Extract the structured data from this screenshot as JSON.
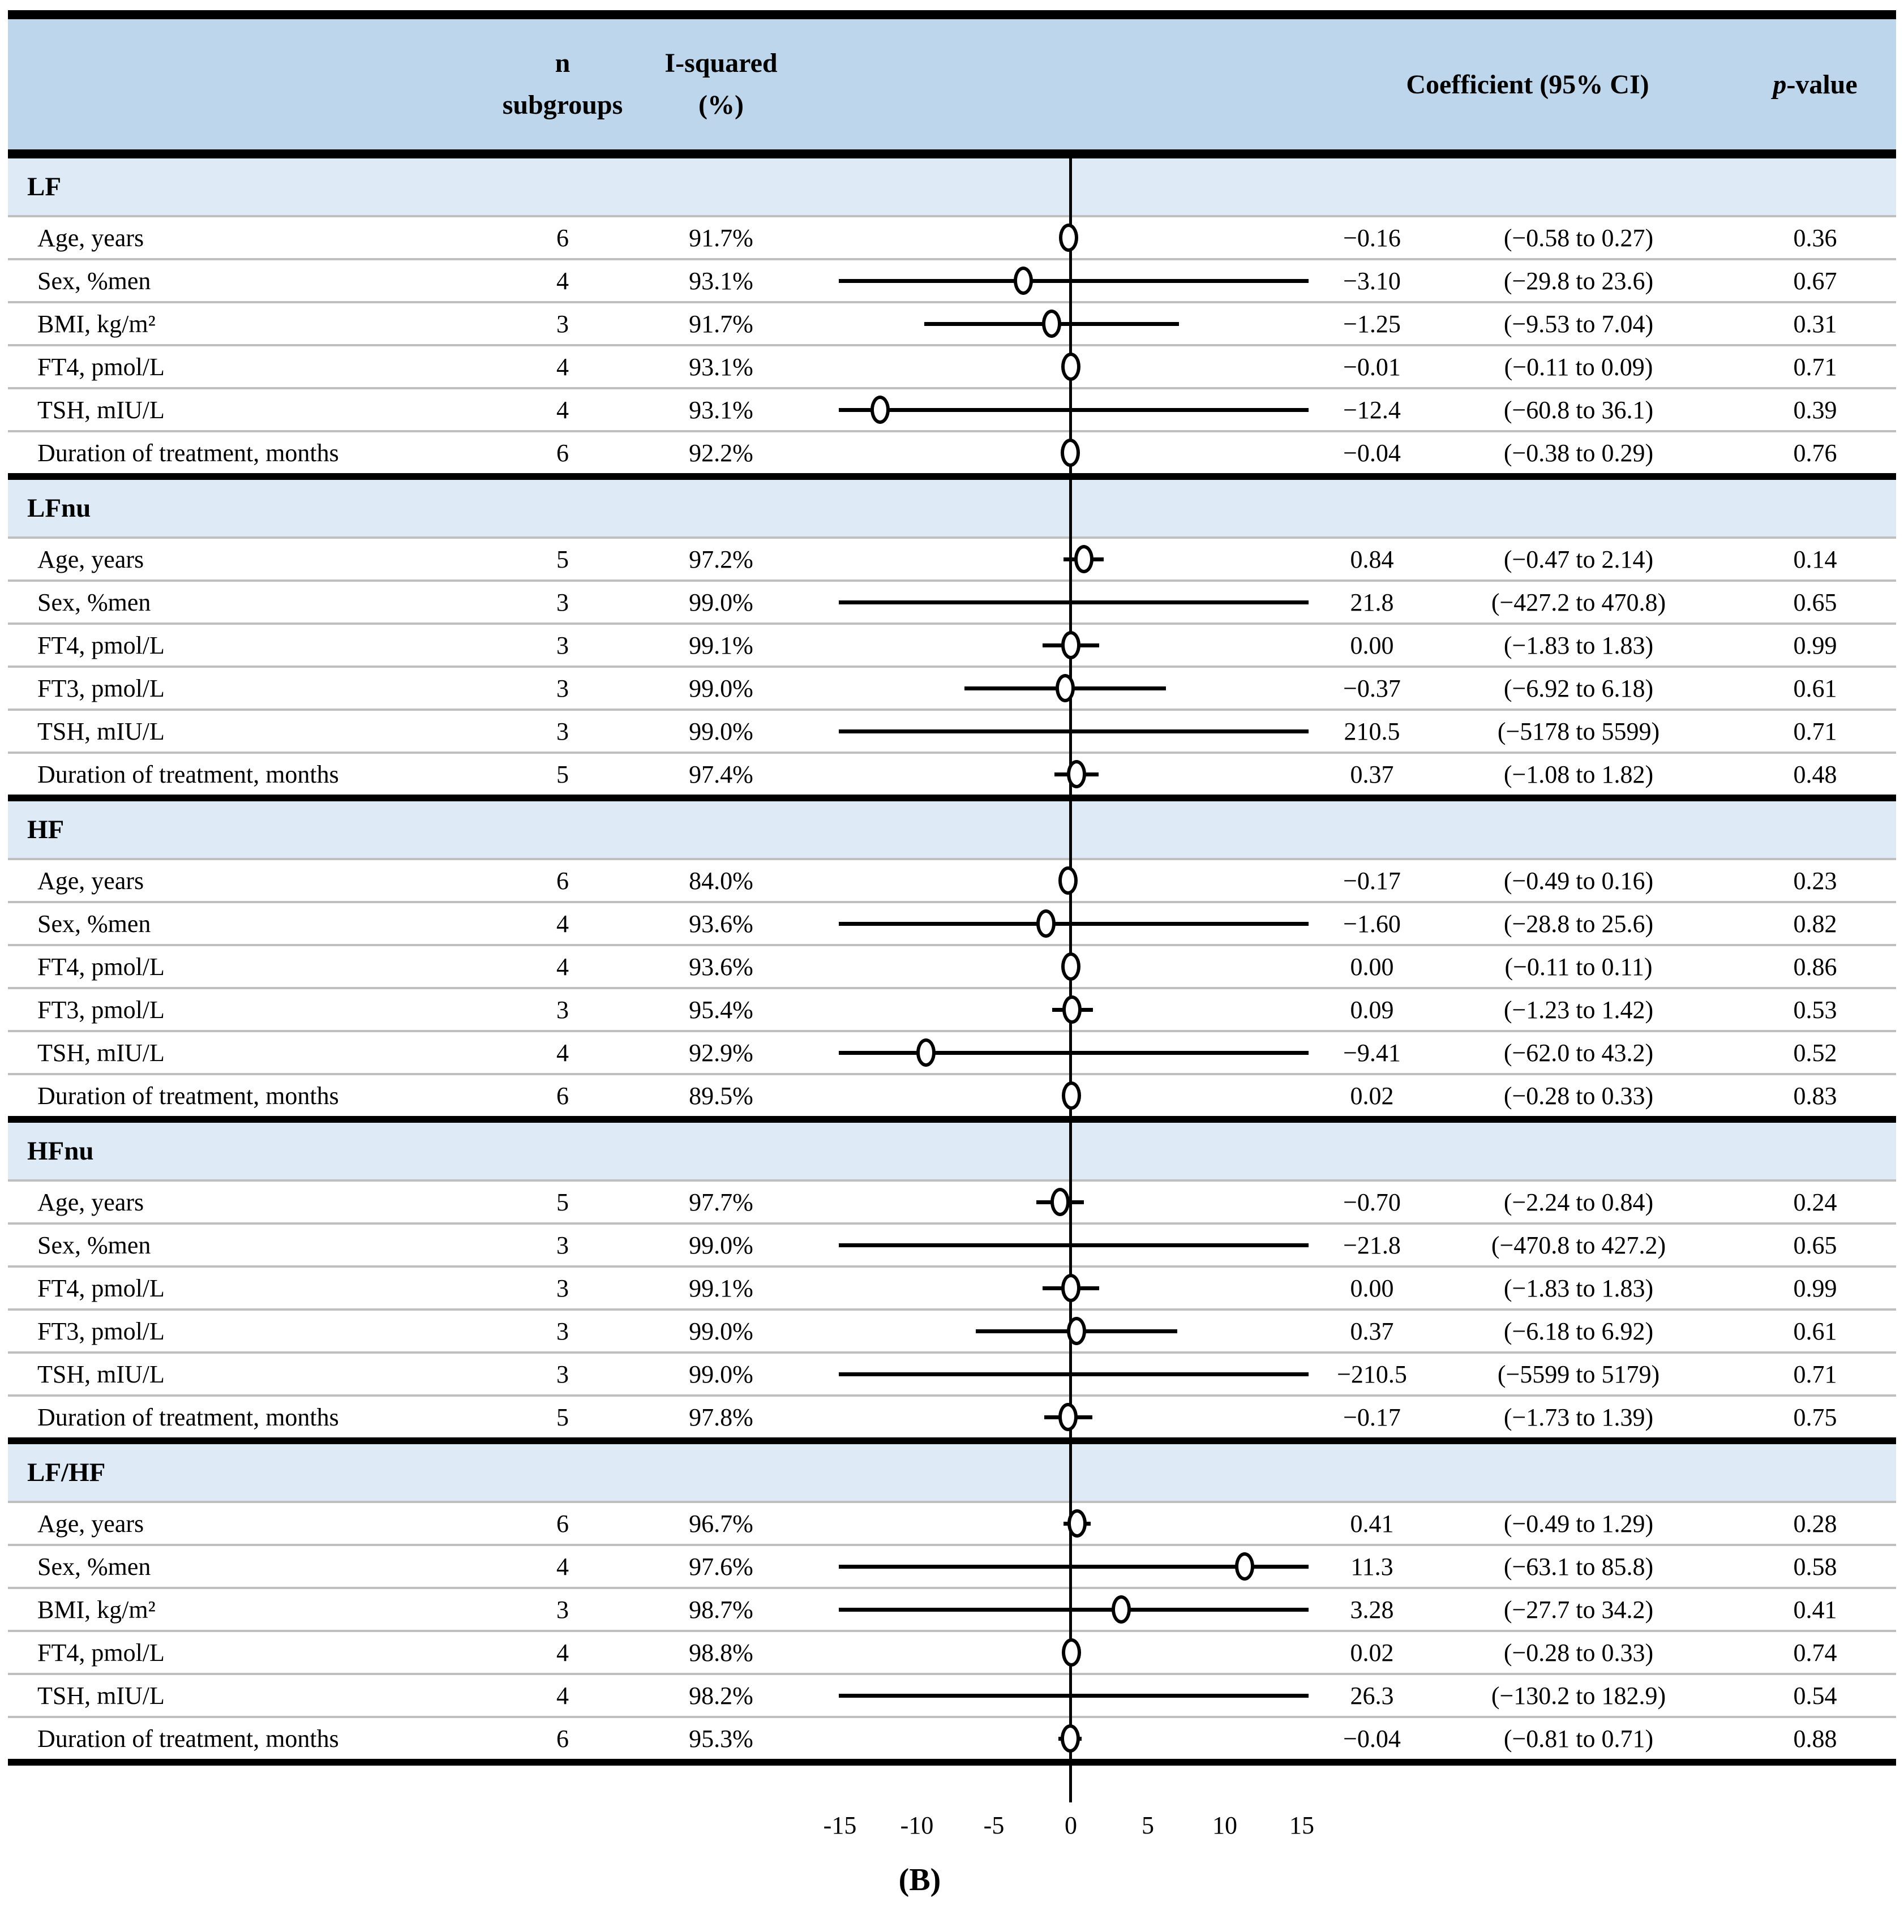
{
  "header": {
    "n_line1": "n",
    "n_line2": "subgroups",
    "isq_line1": "I-squared",
    "isq_line2": "(%)",
    "coef": "Coefficient (95% CI)",
    "p_italic": "p",
    "p_suffix": "-value"
  },
  "axis": {
    "tick_labels": [
      "-15",
      "-10",
      "-5",
      "0",
      "5",
      "10",
      "15"
    ],
    "tick_values": [
      -15,
      -10,
      -5,
      0,
      5,
      10,
      15
    ]
  },
  "caption": "(B)",
  "colors": {
    "header_band": "#bdd6ec",
    "group_band": "#deeaf6",
    "row_separator": "#bfbfbf",
    "rule": "#000000",
    "marker_fill": "#ffffff",
    "marker_stroke": "#000000"
  },
  "chart_data": {
    "type": "scatter",
    "subtype": "forest-plot",
    "title": "(B)",
    "xlabel": "",
    "xlim": [
      -15,
      15
    ],
    "x_ticks": [
      -15,
      -10,
      -5,
      0,
      5,
      10,
      15
    ],
    "zero_line": 0,
    "groups": [
      {
        "name": "LF",
        "rows": [
          {
            "label": "Age, years",
            "n": "6",
            "i2": "91.7%",
            "coef": "−0.16",
            "ci": "(−0.58 to 0.27)",
            "p": "0.36",
            "est": -0.16,
            "lo": -0.58,
            "hi": 0.27
          },
          {
            "label": "Sex, %men",
            "n": "4",
            "i2": "93.1%",
            "coef": "−3.10",
            "ci": "(−29.8 to 23.6)",
            "p": "0.67",
            "est": -3.1,
            "lo": -29.8,
            "hi": 23.6
          },
          {
            "label": "BMI, kg/m²",
            "n": "3",
            "i2": "91.7%",
            "coef": "−1.25",
            "ci": "(−9.53 to 7.04)",
            "p": "0.31",
            "est": -1.25,
            "lo": -9.53,
            "hi": 7.04
          },
          {
            "label": "FT4, pmol/L",
            "n": "4",
            "i2": "93.1%",
            "coef": "−0.01",
            "ci": "(−0.11 to 0.09)",
            "p": "0.71",
            "est": -0.01,
            "lo": -0.11,
            "hi": 0.09
          },
          {
            "label": "TSH, mIU/L",
            "n": "4",
            "i2": "93.1%",
            "coef": "−12.4",
            "ci": "(−60.8 to 36.1)",
            "p": "0.39",
            "est": -12.4,
            "lo": -60.8,
            "hi": 36.1
          },
          {
            "label": "Duration of treatment, months",
            "n": "6",
            "i2": "92.2%",
            "coef": "−0.04",
            "ci": "(−0.38 to 0.29)",
            "p": "0.76",
            "est": -0.04,
            "lo": -0.38,
            "hi": 0.29
          }
        ]
      },
      {
        "name": "LFnu",
        "rows": [
          {
            "label": "Age, years",
            "n": "5",
            "i2": "97.2%",
            "coef": "0.84",
            "ci": "(−0.47 to 2.14)",
            "p": "0.14",
            "est": 0.84,
            "lo": -0.47,
            "hi": 2.14
          },
          {
            "label": "Sex, %men",
            "n": "3",
            "i2": "99.0%",
            "coef": "21.8",
            "ci": "(−427.2 to 470.8)",
            "p": "0.65",
            "est": 21.8,
            "lo": -427.2,
            "hi": 470.8
          },
          {
            "label": "FT4, pmol/L",
            "n": "3",
            "i2": "99.1%",
            "coef": "0.00",
            "ci": "(−1.83 to 1.83)",
            "p": "0.99",
            "est": 0.0,
            "lo": -1.83,
            "hi": 1.83
          },
          {
            "label": "FT3, pmol/L",
            "n": "3",
            "i2": "99.0%",
            "coef": "−0.37",
            "ci": "(−6.92 to 6.18)",
            "p": "0.61",
            "est": -0.37,
            "lo": -6.92,
            "hi": 6.18
          },
          {
            "label": "TSH, mIU/L",
            "n": "3",
            "i2": "99.0%",
            "coef": "210.5",
            "ci": "(−5178 to 5599)",
            "p": "0.71",
            "est": 210.5,
            "lo": -5178,
            "hi": 5599
          },
          {
            "label": "Duration of treatment, months",
            "n": "5",
            "i2": "97.4%",
            "coef": "0.37",
            "ci": "(−1.08 to 1.82)",
            "p": "0.48",
            "est": 0.37,
            "lo": -1.08,
            "hi": 1.82
          }
        ]
      },
      {
        "name": "HF",
        "rows": [
          {
            "label": "Age, years",
            "n": "6",
            "i2": "84.0%",
            "coef": "−0.17",
            "ci": "(−0.49 to 0.16)",
            "p": "0.23",
            "est": -0.17,
            "lo": -0.49,
            "hi": 0.16
          },
          {
            "label": "Sex, %men",
            "n": "4",
            "i2": "93.6%",
            "coef": "−1.60",
            "ci": "(−28.8 to 25.6)",
            "p": "0.82",
            "est": -1.6,
            "lo": -28.8,
            "hi": 25.6
          },
          {
            "label": "FT4, pmol/L",
            "n": "4",
            "i2": "93.6%",
            "coef": "0.00",
            "ci": "(−0.11 to 0.11)",
            "p": "0.86",
            "est": 0.0,
            "lo": -0.11,
            "hi": 0.11
          },
          {
            "label": "FT3, pmol/L",
            "n": "3",
            "i2": "95.4%",
            "coef": "0.09",
            "ci": "(−1.23 to 1.42)",
            "p": "0.53",
            "est": 0.09,
            "lo": -1.23,
            "hi": 1.42
          },
          {
            "label": "TSH, mIU/L",
            "n": "4",
            "i2": "92.9%",
            "coef": "−9.41",
            "ci": "(−62.0 to 43.2)",
            "p": "0.52",
            "est": -9.41,
            "lo": -62.0,
            "hi": 43.2
          },
          {
            "label": "Duration of treatment, months",
            "n": "6",
            "i2": "89.5%",
            "coef": "0.02",
            "ci": "(−0.28 to 0.33)",
            "p": "0.83",
            "est": 0.02,
            "lo": -0.28,
            "hi": 0.33
          }
        ]
      },
      {
        "name": "HFnu",
        "rows": [
          {
            "label": "Age, years",
            "n": "5",
            "i2": "97.7%",
            "coef": "−0.70",
            "ci": "(−2.24 to 0.84)",
            "p": "0.24",
            "est": -0.7,
            "lo": -2.24,
            "hi": 0.84
          },
          {
            "label": "Sex, %men",
            "n": "3",
            "i2": "99.0%",
            "coef": "−21.8",
            "ci": "(−470.8 to 427.2)",
            "p": "0.65",
            "est": -21.8,
            "lo": -470.8,
            "hi": 427.2
          },
          {
            "label": "FT4, pmol/L",
            "n": "3",
            "i2": "99.1%",
            "coef": "0.00",
            "ci": "(−1.83 to 1.83)",
            "p": "0.99",
            "est": 0.0,
            "lo": -1.83,
            "hi": 1.83
          },
          {
            "label": "FT3, pmol/L",
            "n": "3",
            "i2": "99.0%",
            "coef": "0.37",
            "ci": "(−6.18 to 6.92)",
            "p": "0.61",
            "est": 0.37,
            "lo": -6.18,
            "hi": 6.92
          },
          {
            "label": "TSH, mIU/L",
            "n": "3",
            "i2": "99.0%",
            "coef": "−210.5",
            "ci": "(−5599 to 5179)",
            "p": "0.71",
            "est": -210.5,
            "lo": -5599,
            "hi": 5179
          },
          {
            "label": "Duration of treatment, months",
            "n": "5",
            "i2": "97.8%",
            "coef": "−0.17",
            "ci": "(−1.73 to 1.39)",
            "p": "0.75",
            "est": -0.17,
            "lo": -1.73,
            "hi": 1.39
          }
        ]
      },
      {
        "name": "LF/HF",
        "rows": [
          {
            "label": "Age, years",
            "n": "6",
            "i2": "96.7%",
            "coef": "0.41",
            "ci": "(−0.49 to 1.29)",
            "p": "0.28",
            "est": 0.41,
            "lo": -0.49,
            "hi": 1.29
          },
          {
            "label": "Sex, %men",
            "n": "4",
            "i2": "97.6%",
            "coef": "11.3",
            "ci": "(−63.1 to 85.8)",
            "p": "0.58",
            "est": 11.3,
            "lo": -63.1,
            "hi": 85.8
          },
          {
            "label": "BMI, kg/m²",
            "n": "3",
            "i2": "98.7%",
            "coef": "3.28",
            "ci": "(−27.7 to 34.2)",
            "p": "0.41",
            "est": 3.28,
            "lo": -27.7,
            "hi": 34.2
          },
          {
            "label": "FT4, pmol/L",
            "n": "4",
            "i2": "98.8%",
            "coef": "0.02",
            "ci": "(−0.28 to 0.33)",
            "p": "0.74",
            "est": 0.02,
            "lo": -0.28,
            "hi": 0.33
          },
          {
            "label": "TSH, mIU/L",
            "n": "4",
            "i2": "98.2%",
            "coef": "26.3",
            "ci": "(−130.2 to 182.9)",
            "p": "0.54",
            "est": 26.3,
            "lo": -130.2,
            "hi": 182.9
          },
          {
            "label": "Duration of treatment, months",
            "n": "6",
            "i2": "95.3%",
            "coef": "−0.04",
            "ci": "(−0.81 to 0.71)",
            "p": "0.88",
            "est": -0.04,
            "lo": -0.81,
            "hi": 0.71
          }
        ]
      }
    ]
  }
}
